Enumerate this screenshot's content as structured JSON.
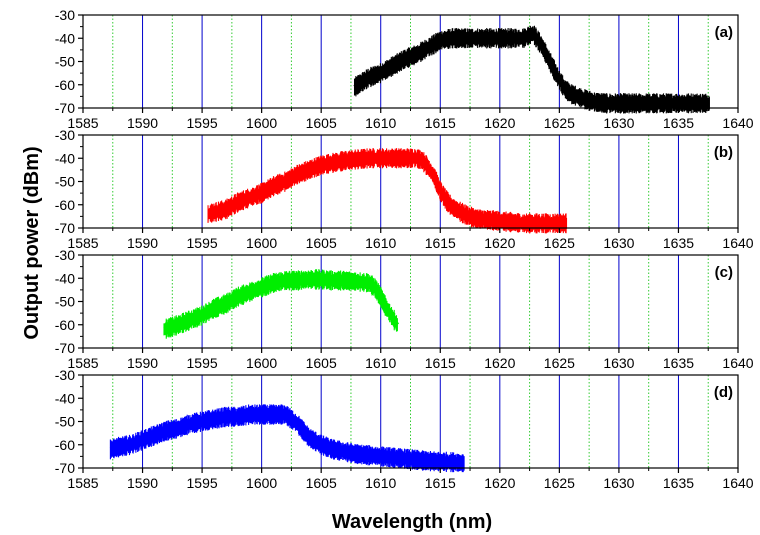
{
  "chart_data": {
    "type": "line",
    "xlabel": "Wavelength (nm)",
    "ylabel": "Output power (dBm)",
    "xlim": [
      1585,
      1640
    ],
    "ylim": [
      -70,
      -30
    ],
    "x_ticks": [
      1585,
      1590,
      1595,
      1600,
      1605,
      1610,
      1615,
      1620,
      1625,
      1630,
      1635,
      1640
    ],
    "y_ticks": [
      -30,
      -40,
      -50,
      -60,
      -70
    ],
    "major_grid": "solid blue vertical lines every 5 nm",
    "minor_grid": "dotted green vertical lines every 2.5 nm",
    "panels": [
      {
        "label": "(a)",
        "color": "#000000",
        "series": [
          {
            "x": [
              1607.8,
              1609,
              1610,
              1611,
              1612,
              1613,
              1614,
              1615,
              1616,
              1617,
              1618,
              1619,
              1620,
              1621,
              1622,
              1622.8,
              1623.5,
              1624,
              1624.5,
              1625,
              1625.5,
              1626,
              1627,
              1628,
              1629,
              1630,
              1632,
              1634,
              1636,
              1637.6
            ],
            "y": [
              -61,
              -57,
              -55,
              -52,
              -49,
              -47,
              -44,
              -41,
              -40,
              -40,
              -40,
              -40,
              -40,
              -40,
              -40,
              -38,
              -43,
              -48,
              -53,
              -58,
              -62,
              -64,
              -66,
              -67.5,
              -68,
              -68,
              -68,
              -68,
              -68,
              -68
            ]
          }
        ]
      },
      {
        "label": "(b)",
        "color": "#ff0000",
        "series": [
          {
            "x": [
              1595.5,
              1597,
              1598,
              1599,
              1600,
              1601,
              1602,
              1603,
              1604,
              1605,
              1606,
              1607,
              1608,
              1609,
              1610,
              1611,
              1612,
              1613,
              1613.5,
              1614,
              1614.5,
              1615,
              1615.5,
              1616,
              1617,
              1618,
              1620,
              1622,
              1624,
              1625.6
            ],
            "y": [
              -64,
              -62,
              -59,
              -57,
              -55,
              -52,
              -50,
              -47,
              -45,
              -43,
              -42,
              -41,
              -40.5,
              -40,
              -40,
              -40,
              -40,
              -40,
              -41,
              -44,
              -48,
              -54,
              -58,
              -61,
              -64,
              -66,
              -67,
              -68,
              -68,
              -68
            ]
          }
        ]
      },
      {
        "label": "(c)",
        "color": "#00ee00",
        "series": [
          {
            "x": [
              1591.8,
              1593,
              1594,
              1595,
              1596,
              1597,
              1598,
              1599,
              1600,
              1601,
              1602,
              1603,
              1604,
              1605,
              1606,
              1607,
              1608,
              1609,
              1609.5,
              1610,
              1610.5,
              1611,
              1611.4
            ],
            "y": [
              -62,
              -60,
              -58,
              -56,
              -53,
              -51,
              -48,
              -46,
              -44,
              -42,
              -41,
              -41,
              -40.5,
              -40.5,
              -41,
              -41,
              -41.5,
              -42,
              -44,
              -48,
              -53,
              -57,
              -60
            ]
          }
        ]
      },
      {
        "label": "(d)",
        "color": "#0000ff",
        "series": [
          {
            "x": [
              1587.3,
              1588,
              1589,
              1590,
              1591,
              1592,
              1593,
              1594,
              1595,
              1596,
              1597,
              1598,
              1599,
              1600,
              1601,
              1602,
              1602.5,
              1603,
              1603.5,
              1604,
              1605,
              1606,
              1607,
              1608,
              1610,
              1612,
              1614,
              1616,
              1617
            ],
            "y": [
              -62,
              -61,
              -60,
              -58,
              -56,
              -54,
              -53,
              -51,
              -50,
              -49,
              -48,
              -48,
              -47,
              -47,
              -47,
              -47,
              -49,
              -51,
              -54,
              -57,
              -60,
              -62,
              -63,
              -64,
              -65,
              -66,
              -67,
              -67.5,
              -68
            ]
          }
        ]
      }
    ]
  }
}
